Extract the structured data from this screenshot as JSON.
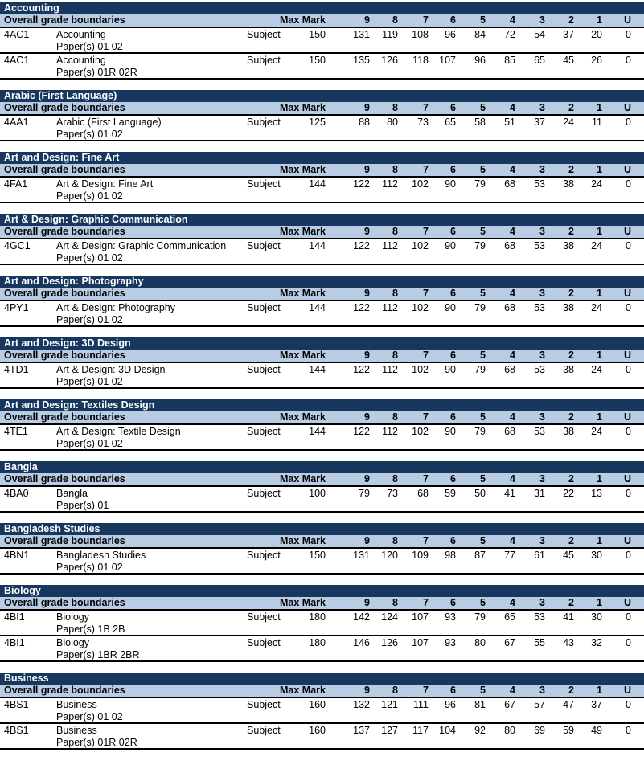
{
  "header_labels": {
    "overall": "Overall grade boundaries",
    "max_mark": "Max Mark",
    "grades": [
      "9",
      "8",
      "7",
      "6",
      "5",
      "4",
      "3",
      "2",
      "1",
      "U"
    ]
  },
  "subjects": [
    {
      "title": "Accounting",
      "rows": [
        {
          "code": "4AC1",
          "name": "Accounting",
          "papers": "Paper(s) 01 02",
          "level": "Subject",
          "max": "150",
          "grades": [
            "131",
            "119",
            "108",
            "96",
            "84",
            "72",
            "54",
            "37",
            "20",
            "0"
          ]
        },
        {
          "code": "4AC1",
          "name": "Accounting",
          "papers": "Paper(s) 01R 02R",
          "level": "Subject",
          "max": "150",
          "grades": [
            "135",
            "126",
            "118",
            "107",
            "96",
            "85",
            "65",
            "45",
            "26",
            "0"
          ]
        }
      ]
    },
    {
      "title": "Arabic (First Language)",
      "rows": [
        {
          "code": "4AA1",
          "name": "Arabic (First Language)",
          "papers": "Paper(s) 01 02",
          "level": "Subject",
          "max": "125",
          "grades": [
            "88",
            "80",
            "73",
            "65",
            "58",
            "51",
            "37",
            "24",
            "11",
            "0"
          ]
        }
      ]
    },
    {
      "title": "Art and Design: Fine Art",
      "rows": [
        {
          "code": "4FA1",
          "name": "Art & Design: Fine Art",
          "papers": "Paper(s) 01 02",
          "level": "Subject",
          "max": "144",
          "grades": [
            "122",
            "112",
            "102",
            "90",
            "79",
            "68",
            "53",
            "38",
            "24",
            "0"
          ]
        }
      ]
    },
    {
      "title": "Art & Design: Graphic Communication",
      "rows": [
        {
          "code": "4GC1",
          "name": "Art & Design: Graphic Communication",
          "papers": "Paper(s) 01 02",
          "level": "Subject",
          "max": "144",
          "grades": [
            "122",
            "112",
            "102",
            "90",
            "79",
            "68",
            "53",
            "38",
            "24",
            "0"
          ]
        }
      ]
    },
    {
      "title": "Art and Design: Photography",
      "rows": [
        {
          "code": "4PY1",
          "name": "Art & Design: Photography",
          "papers": "Paper(s) 01 02",
          "level": "Subject",
          "max": "144",
          "grades": [
            "122",
            "112",
            "102",
            "90",
            "79",
            "68",
            "53",
            "38",
            "24",
            "0"
          ]
        }
      ]
    },
    {
      "title": "Art and Design: 3D Design",
      "rows": [
        {
          "code": "4TD1",
          "name": "Art & Design: 3D Design",
          "papers": "Paper(s) 01 02",
          "level": "Subject",
          "max": "144",
          "grades": [
            "122",
            "112",
            "102",
            "90",
            "79",
            "68",
            "53",
            "38",
            "24",
            "0"
          ]
        }
      ]
    },
    {
      "title": "Art and Design: Textiles Design",
      "rows": [
        {
          "code": "4TE1",
          "name": "Art & Design: Textile Design",
          "papers": "Paper(s) 01 02",
          "level": "Subject",
          "max": "144",
          "grades": [
            "122",
            "112",
            "102",
            "90",
            "79",
            "68",
            "53",
            "38",
            "24",
            "0"
          ]
        }
      ]
    },
    {
      "title": "Bangla",
      "rows": [
        {
          "code": "4BA0",
          "name": "Bangla",
          "papers": "Paper(s) 01",
          "level": "Subject",
          "max": "100",
          "grades": [
            "79",
            "73",
            "68",
            "59",
            "50",
            "41",
            "31",
            "22",
            "13",
            "0"
          ]
        }
      ]
    },
    {
      "title": "Bangladesh Studies",
      "rows": [
        {
          "code": "4BN1",
          "name": "Bangladesh Studies",
          "papers": "Paper(s) 01 02",
          "level": "Subject",
          "max": "150",
          "grades": [
            "131",
            "120",
            "109",
            "98",
            "87",
            "77",
            "61",
            "45",
            "30",
            "0"
          ]
        }
      ]
    },
    {
      "title": "Biology",
      "rows": [
        {
          "code": "4BI1",
          "name": "Biology",
          "papers": "Paper(s) 1B 2B",
          "level": "Subject",
          "max": "180",
          "grades": [
            "142",
            "124",
            "107",
            "93",
            "79",
            "65",
            "53",
            "41",
            "30",
            "0"
          ]
        },
        {
          "code": "4BI1",
          "name": "Biology",
          "papers": "Paper(s) 1BR 2BR",
          "level": "Subject",
          "max": "180",
          "grades": [
            "146",
            "126",
            "107",
            "93",
            "80",
            "67",
            "55",
            "43",
            "32",
            "0"
          ]
        }
      ]
    },
    {
      "title": "Business",
      "rows": [
        {
          "code": "4BS1",
          "name": "Business",
          "papers": "Paper(s) 01 02",
          "level": "Subject",
          "max": "160",
          "grades": [
            "132",
            "121",
            "111",
            "96",
            "81",
            "67",
            "57",
            "47",
            "37",
            "0"
          ]
        },
        {
          "code": "4BS1",
          "name": "Business",
          "papers": "Paper(s) 01R 02R",
          "level": "Subject",
          "max": "160",
          "grades": [
            "137",
            "127",
            "117",
            "104",
            "92",
            "80",
            "69",
            "59",
            "49",
            "0"
          ]
        }
      ]
    }
  ]
}
